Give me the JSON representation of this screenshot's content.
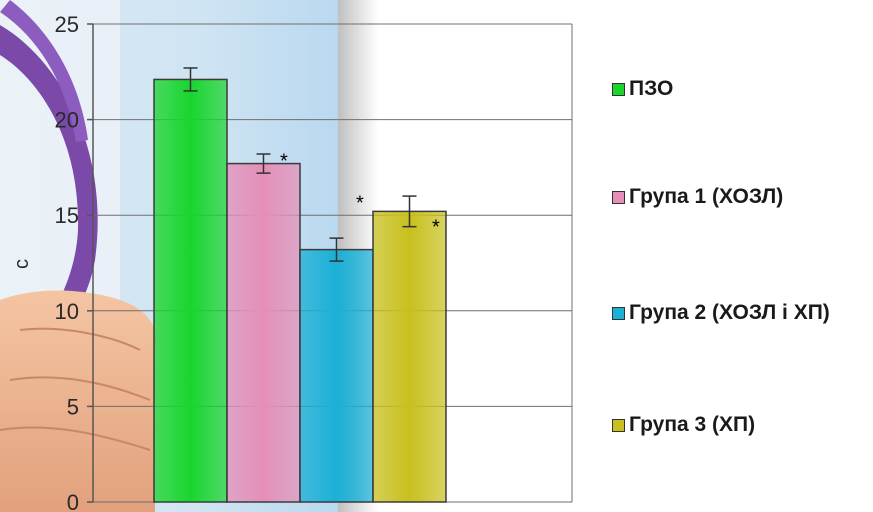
{
  "colors": {
    "pzo": "#19d52e",
    "group1": "#e58fb8",
    "group2": "#1bb0d6",
    "group3": "#c7c01e"
  },
  "chart_data": {
    "type": "bar",
    "categories": [
      "ПЗО",
      "Група 1 (ХОЗЛ)",
      "Група 2 (ХОЗЛ і ХП)",
      "Група 3 (ХП)"
    ],
    "values": [
      22.1,
      17.7,
      13.2,
      15.2
    ],
    "errors": [
      0.6,
      0.5,
      0.6,
      0.8
    ],
    "significance": [
      "",
      "*",
      "*",
      "*"
    ],
    "title": "",
    "xlabel": "",
    "ylabel": "с",
    "ylim": [
      0,
      25
    ],
    "yticks": [
      "0",
      "5",
      "10",
      "15",
      "20",
      "25"
    ],
    "grid": true,
    "legend": "right"
  },
  "legend": {
    "items": [
      {
        "label": "ПЗО"
      },
      {
        "label": "Група 1 (ХОЗЛ)"
      },
      {
        "label": "Група 2 (ХОЗЛ і ХП)"
      },
      {
        "label": "Група 3 (ХП)"
      }
    ]
  }
}
